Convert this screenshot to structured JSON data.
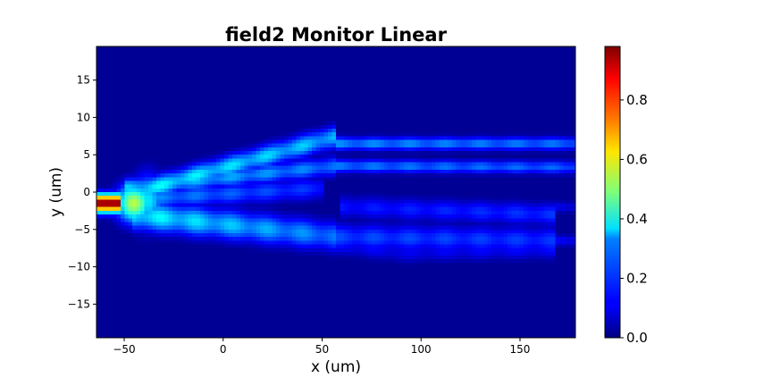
{
  "chart_data": {
    "type": "heatmap",
    "title": "field2 Monitor Linear",
    "xlabel": "x (um)",
    "ylabel": "y (um)",
    "xlim": [
      -64,
      178
    ],
    "ylim": [
      -19.5,
      19.5
    ],
    "x_ticks": [
      -50,
      0,
      50,
      100,
      150
    ],
    "y_ticks": [
      -15,
      -10,
      -5,
      0,
      5,
      10,
      15
    ],
    "colorbar": {
      "min": 0.0,
      "max": 0.98,
      "ticks": [
        0.0,
        0.2,
        0.4,
        0.6,
        0.8
      ],
      "tick_labels": [
        "0.0",
        "0.2",
        "0.4",
        "0.6",
        "0.8"
      ],
      "colormap": "jet"
    },
    "grid": false,
    "features": [
      {
        "kind": "input_beam",
        "x0": -64,
        "x1": -52,
        "y": -1.5,
        "width": 1.2,
        "value": 0.98
      },
      {
        "kind": "splash",
        "x": -45,
        "y": -1.5,
        "sx": 9,
        "sy": 2.5,
        "value": 0.55
      },
      {
        "kind": "splash",
        "x": -38,
        "y": -1.2,
        "sx": 8,
        "sy": 3.5,
        "value": 0.35
      },
      {
        "kind": "branch",
        "x0": -50,
        "y0": -0.5,
        "x1": 58,
        "y1": 7.5,
        "width": 1.5,
        "v0": 0.35,
        "v1": 0.28
      },
      {
        "kind": "branch",
        "x0": -50,
        "y0": 0.5,
        "x1": 58,
        "y1": 3.5,
        "width": 1.3,
        "v0": 0.3,
        "v1": 0.22
      },
      {
        "kind": "branch",
        "x0": -48,
        "y0": -1.0,
        "x1": 50,
        "y1": 0.5,
        "width": 1.5,
        "v0": 0.25,
        "v1": 0.15
      },
      {
        "kind": "branch",
        "x0": -45,
        "y0": -3.0,
        "x1": 58,
        "y1": -6.0,
        "width": 2.0,
        "v0": 0.35,
        "v1": 0.22
      },
      {
        "kind": "branch",
        "x0": -40,
        "y0": -3.5,
        "x1": 90,
        "y1": -8.0,
        "width": 1.5,
        "v0": 0.2,
        "v1": 0.1
      },
      {
        "kind": "branch",
        "x0": 58,
        "y0": 6.5,
        "x1": 178,
        "y1": 6.5,
        "width": 0.9,
        "v0": 0.25,
        "v1": 0.22
      },
      {
        "kind": "branch",
        "x0": 58,
        "y0": 3.5,
        "x1": 178,
        "y1": 3.3,
        "width": 0.9,
        "v0": 0.23,
        "v1": 0.2
      },
      {
        "kind": "branch",
        "x0": 60,
        "y0": -2.0,
        "x1": 168,
        "y1": -3.0,
        "width": 1.5,
        "v0": 0.13,
        "v1": 0.16
      },
      {
        "kind": "branch",
        "x0": 58,
        "y0": -6.0,
        "x1": 168,
        "y1": -6.5,
        "width": 1.8,
        "v0": 0.18,
        "v1": 0.16
      },
      {
        "kind": "branch",
        "x0": 90,
        "y0": -8.0,
        "x1": 168,
        "y1": -7.5,
        "width": 1.5,
        "v0": 0.1,
        "v1": 0.12
      },
      {
        "kind": "branch",
        "x0": 168,
        "y0": -2.0,
        "x1": 178,
        "y1": -2.0,
        "width": 0.8,
        "v0": 0.1,
        "v1": 0.1
      },
      {
        "kind": "branch",
        "x0": 168,
        "y0": -6.5,
        "x1": 178,
        "y1": -6.5,
        "width": 0.8,
        "v0": 0.12,
        "v1": 0.12
      }
    ]
  }
}
